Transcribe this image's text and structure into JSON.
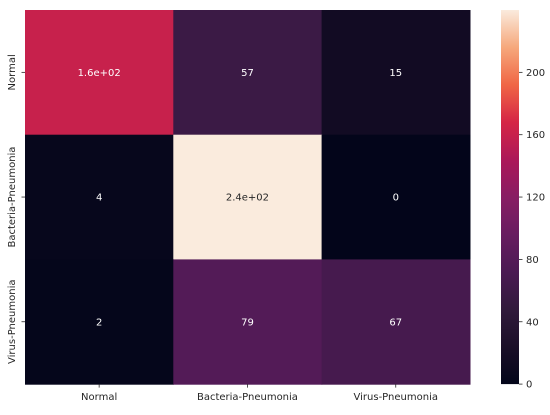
{
  "chart_data": {
    "type": "heatmap",
    "title": "",
    "xlabel": "",
    "ylabel": "",
    "x_categories": [
      "Normal",
      "Bacteria-Pneumonia",
      "Virus-Pneumonia"
    ],
    "y_categories": [
      "Normal",
      "Bacteria-Pneumonia",
      "Virus-Pneumonia"
    ],
    "values": [
      [
        160,
        57,
        15
      ],
      [
        4,
        240,
        0
      ],
      [
        2,
        79,
        67
      ]
    ],
    "annotations": [
      [
        "1.6e+02",
        "57",
        "15"
      ],
      [
        "4",
        "2.4e+02",
        "0"
      ],
      [
        "2",
        "79",
        "67"
      ]
    ],
    "colormap": "rocket",
    "vmin": 0,
    "vmax": 240,
    "colorbar_ticks": [
      0,
      40,
      80,
      120,
      160,
      200
    ],
    "grid": false,
    "legend": "colorbar-right"
  }
}
